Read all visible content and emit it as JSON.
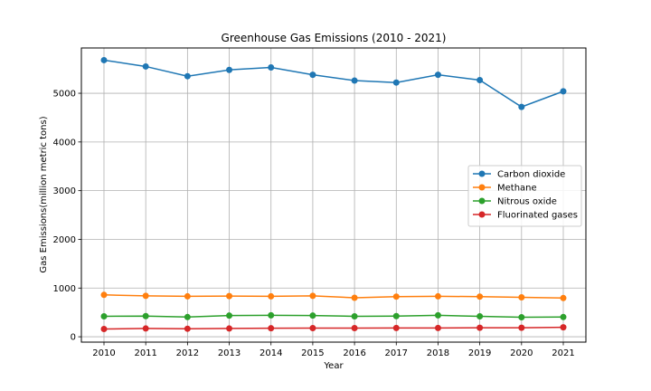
{
  "chart_data": {
    "type": "line",
    "title": "Greenhouse Gas Emissions (2010 - 2021)",
    "xlabel": "Year",
    "ylabel": "Gas Emissions(million metric tons)",
    "x": [
      "2010",
      "2011",
      "2012",
      "2013",
      "2014",
      "2015",
      "2016",
      "2017",
      "2018",
      "2019",
      "2020",
      "2021"
    ],
    "yticks": [
      0,
      1000,
      2000,
      3000,
      4000,
      5000
    ],
    "ylim": [
      -110,
      5930
    ],
    "grid": true,
    "legend_position": "center-right",
    "series": [
      {
        "name": "Carbon dioxide",
        "color": "#1f77b4",
        "values": [
          5680,
          5550,
          5350,
          5480,
          5530,
          5380,
          5260,
          5220,
          5380,
          5270,
          4720,
          5040
        ]
      },
      {
        "name": "Methane",
        "color": "#ff7f0e",
        "values": [
          860,
          840,
          830,
          835,
          830,
          840,
          800,
          825,
          830,
          825,
          810,
          795
        ]
      },
      {
        "name": "Nitrous oxide",
        "color": "#2ca02c",
        "values": [
          420,
          425,
          405,
          435,
          440,
          435,
          420,
          425,
          440,
          420,
          400,
          405
        ]
      },
      {
        "name": "Fluorinated gases",
        "color": "#d62728",
        "values": [
          160,
          170,
          165,
          170,
          175,
          178,
          178,
          180,
          180,
          185,
          185,
          195
        ]
      }
    ]
  }
}
